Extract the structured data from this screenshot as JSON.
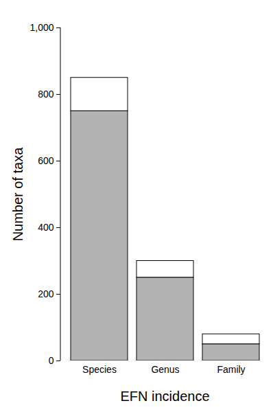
{
  "chart_data": {
    "type": "bar",
    "stacked": true,
    "x_label": "EFN incidence",
    "y_label": "Number of taxa",
    "categories": [
      "Species",
      "Genus",
      "Family"
    ],
    "series": [
      {
        "color": "#b3b3b3",
        "values": [
          750,
          250,
          50
        ]
      },
      {
        "color": "#ffffff",
        "values": [
          100,
          50,
          30
        ]
      }
    ],
    "ylim": [
      0,
      1000
    ],
    "yticks": [
      0,
      200,
      400,
      600,
      800,
      1000
    ],
    "grid": false
  }
}
